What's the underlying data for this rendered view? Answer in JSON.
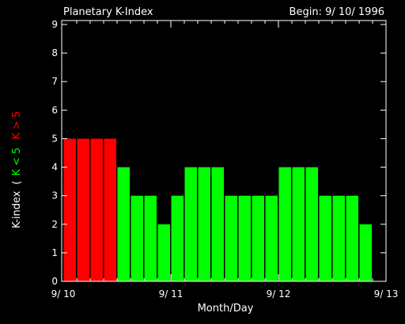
{
  "chart_data": {
    "type": "bar",
    "title": "Planetary K-Index",
    "begin_label": "Begin: 9/ 10/ 1996",
    "xlabel": "Month/Day",
    "ylabel_prefix": "K-index",
    "ylabel_open": "(",
    "ylabel_green": "K < 5",
    "ylabel_red": "K > 5",
    "ylim": [
      0,
      9
    ],
    "y_ticks": [
      "0",
      "1",
      "2",
      "3",
      "4",
      "5",
      "6",
      "7",
      "8",
      "9"
    ],
    "x_ticks": [
      "9/ 10",
      "9/ 11",
      "9/ 12",
      "9/ 13"
    ],
    "bars_per_day": 8,
    "values": [
      5,
      5,
      5,
      5,
      4,
      3,
      3,
      2,
      3,
      4,
      4,
      4,
      3,
      3,
      3,
      3,
      4,
      4,
      4,
      3,
      3,
      3,
      2
    ],
    "threshold": 5,
    "colors": {
      "high": "#ff0000",
      "low": "#00ff00",
      "axis": "#ffffff",
      "background": "#000000"
    }
  }
}
